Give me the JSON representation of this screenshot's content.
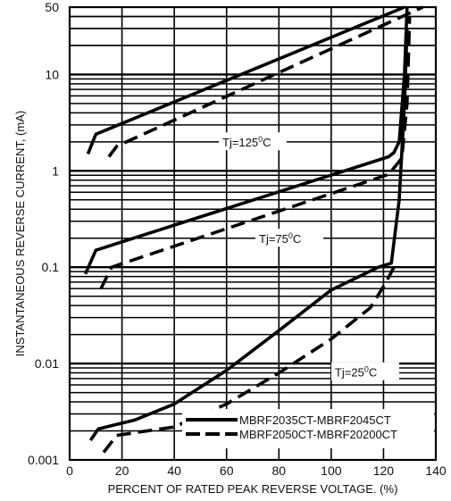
{
  "chart_data": {
    "type": "line",
    "xlabel": "PERCENT OF RATED PEAK REVERSE VOLTAGE. (%)",
    "ylabel": "INSTANTANEOUS REVERSE CURRENT, (mA)",
    "xlim": [
      0,
      140
    ],
    "ylim": [
      0.001,
      50
    ],
    "yscale": "log",
    "x_ticks": [
      0,
      20,
      40,
      60,
      80,
      100,
      120,
      140
    ],
    "x_tick_labels": [
      "0",
      "20",
      "40",
      "60",
      "80",
      "100",
      "120",
      "140"
    ],
    "y_ticks": [
      0.001,
      0.01,
      0.1,
      1,
      10,
      50
    ],
    "y_tick_labels": [
      "0.001",
      "0.01",
      "0.1",
      "1",
      "10",
      "50"
    ],
    "grid": true,
    "legend_position": "bottom-right",
    "annotations": [
      {
        "text": "Tj=125",
        "sup": "0",
        "unit": "C",
        "x": 70,
        "y": 1.9
      },
      {
        "text": "Tj=75",
        "sup": "0",
        "unit": "C",
        "x": 84,
        "y": 0.19
      },
      {
        "text": "Tj=25",
        "sup": "0",
        "unit": "C",
        "x": 113,
        "y": 0.0078
      }
    ],
    "series": [
      {
        "name": "MBRF2035CT-MBRF2045CT",
        "style": "solid",
        "curve": "Tj=125",
        "points": [
          [
            7,
            1.5
          ],
          [
            10,
            2.4
          ],
          [
            128,
            50
          ]
        ]
      },
      {
        "name": "MBRF2035CT-MBRF2045CT",
        "style": "solid",
        "curve": "Tj=75",
        "points": [
          [
            6,
            0.085
          ],
          [
            10,
            0.15
          ],
          [
            122,
            1.4
          ],
          [
            124,
            1.55
          ],
          [
            126,
            2.0
          ],
          [
            128,
            10
          ],
          [
            129,
            50
          ]
        ]
      },
      {
        "name": "MBRF2035CT-MBRF2045CT",
        "style": "solid",
        "curve": "Tj=25",
        "points": [
          [
            8,
            0.0016
          ],
          [
            11,
            0.0021
          ],
          [
            25,
            0.0026
          ],
          [
            40,
            0.0038
          ],
          [
            60,
            0.0085
          ],
          [
            80,
            0.022
          ],
          [
            100,
            0.058
          ],
          [
            118,
            0.1
          ],
          [
            123,
            0.11
          ],
          [
            126,
            0.5
          ],
          [
            128,
            5
          ],
          [
            129,
            30
          ]
        ]
      },
      {
        "name": "MBRF2050CT-MBRF20200CT",
        "style": "dashed",
        "curve": "Tj=125",
        "points": [
          [
            15,
            1.4
          ],
          [
            18,
            1.8
          ],
          [
            135,
            50
          ]
        ]
      },
      {
        "name": "MBRF2050CT-MBRF20200CT",
        "style": "dashed",
        "curve": "Tj=75",
        "points": [
          [
            12,
            0.06
          ],
          [
            16,
            0.1
          ],
          [
            122,
            0.92
          ],
          [
            127,
            1.35
          ],
          [
            129,
            5
          ],
          [
            130,
            40
          ]
        ]
      },
      {
        "name": "MBRF2050CT-MBRF20200CT",
        "style": "dashed",
        "curve": "Tj=25",
        "points": [
          [
            13,
            0.0012
          ],
          [
            18,
            0.0018
          ],
          [
            40,
            0.0022
          ],
          [
            60,
            0.0038
          ],
          [
            80,
            0.008
          ],
          [
            100,
            0.018
          ],
          [
            115,
            0.038
          ],
          [
            121,
            0.07
          ],
          [
            124,
            0.1
          ]
        ]
      }
    ]
  }
}
